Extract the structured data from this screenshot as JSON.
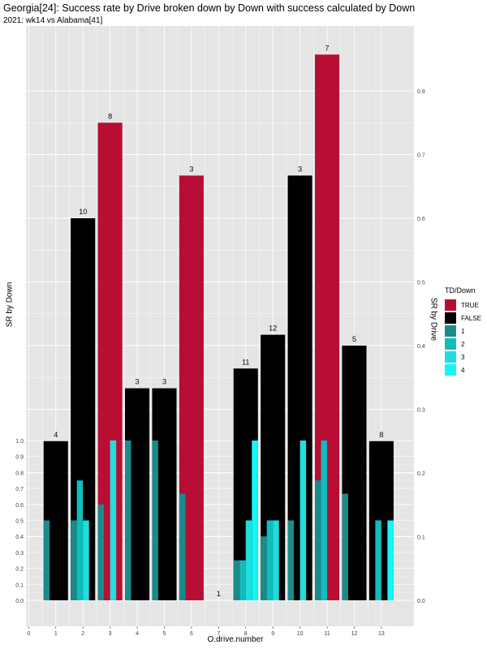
{
  "title": "Georgia[24]: Success rate by Drive broken down by Down with success calculated by Down",
  "subtitle": "2021: wk14 vs Alabama[41]",
  "colors": {
    "panel": "#e5e5e5",
    "grid": "#ffffff",
    "true": "#b90e33",
    "false": "#000000",
    "down1": "#1b8a8a",
    "down2": "#12bcbc",
    "down3": "#20dede",
    "down4": "#16f5f5"
  },
  "legend": {
    "title": "TD/Down",
    "items": [
      {
        "label": "TRUE",
        "color_key": "true"
      },
      {
        "label": "FALSE",
        "color_key": "false"
      },
      {
        "label": "1",
        "color_key": "down1"
      },
      {
        "label": "2",
        "color_key": "down2"
      },
      {
        "label": "3",
        "color_key": "down3"
      },
      {
        "label": "4",
        "color_key": "down4"
      }
    ]
  },
  "chart_data": {
    "type": "bar",
    "title": "Georgia[24]: Success rate by Drive broken down by Down with success calculated by Down",
    "subtitle": "2021: wk14 vs Alabama[41]",
    "xlabel": "O.drive.number",
    "ylabel_left": "SR by Down",
    "ylabel_right": "SR by Drive",
    "x_ticks": [
      "0",
      "1",
      "2",
      "3",
      "4",
      "5",
      "6",
      "7",
      "8",
      "9",
      "10",
      "11",
      "12",
      "13"
    ],
    "x_range": [
      -0.1,
      14.2
    ],
    "left_axis": {
      "range": [
        0,
        1
      ],
      "ticks": [
        "0.0",
        "0.1",
        "0.2",
        "0.3",
        "0.4",
        "0.5",
        "0.6",
        "0.7",
        "0.8",
        "0.9",
        "1.0"
      ]
    },
    "right_axis": {
      "range": [
        0,
        0.8
      ],
      "ticks": [
        "0.0",
        "0.1",
        "0.2",
        "0.3",
        "0.4",
        "0.5",
        "0.6",
        "0.7",
        "0.8"
      ]
    },
    "grid": true,
    "legend_position": "right",
    "drives": [
      {
        "drive": 1,
        "sr": 0.25,
        "td": false,
        "plays": "4"
      },
      {
        "drive": 2,
        "sr": 0.6,
        "td": false,
        "plays": "10"
      },
      {
        "drive": 3,
        "sr": 0.75,
        "td": true,
        "plays": "8"
      },
      {
        "drive": 4,
        "sr": 0.333,
        "td": false,
        "plays": "3"
      },
      {
        "drive": 5,
        "sr": 0.333,
        "td": false,
        "plays": "3"
      },
      {
        "drive": 6,
        "sr": 0.667,
        "td": true,
        "plays": "3"
      },
      {
        "drive": 7,
        "sr": 0.0,
        "td": false,
        "plays": "1"
      },
      {
        "drive": 8,
        "sr": 0.364,
        "td": false,
        "plays": "11"
      },
      {
        "drive": 9,
        "sr": 0.417,
        "td": false,
        "plays": "12"
      },
      {
        "drive": 10,
        "sr": 0.667,
        "td": false,
        "plays": "3"
      },
      {
        "drive": 11,
        "sr": 0.857,
        "td": true,
        "plays": "7"
      },
      {
        "drive": 12,
        "sr": 0.4,
        "td": false,
        "plays": "5"
      },
      {
        "drive": 13,
        "sr": 0.25,
        "td": false,
        "plays": "8"
      }
    ],
    "down_bars": [
      {
        "drive": 1,
        "down": 1,
        "sr": 0.5
      },
      {
        "drive": 2,
        "down": 1,
        "sr": 0.5
      },
      {
        "drive": 2,
        "down": 2,
        "sr": 0.75
      },
      {
        "drive": 2,
        "down": 3,
        "sr": 0.5
      },
      {
        "drive": 3,
        "down": 1,
        "sr": 0.6
      },
      {
        "drive": 3,
        "down": 3,
        "sr": 1.0
      },
      {
        "drive": 4,
        "down": 1,
        "sr": 1.0
      },
      {
        "drive": 5,
        "down": 1,
        "sr": 1.0
      },
      {
        "drive": 6,
        "down": 1,
        "sr": 0.667
      },
      {
        "drive": 8,
        "down": 1,
        "sr": 0.25
      },
      {
        "drive": 8,
        "down": 2,
        "sr": 0.25
      },
      {
        "drive": 8,
        "down": 3,
        "sr": 0.5
      },
      {
        "drive": 8,
        "down": 4,
        "sr": 1.0
      },
      {
        "drive": 9,
        "down": 1,
        "sr": 0.4
      },
      {
        "drive": 9,
        "down": 2,
        "sr": 0.5
      },
      {
        "drive": 9,
        "down": 3,
        "sr": 0.5
      },
      {
        "drive": 10,
        "down": 1,
        "sr": 0.5
      },
      {
        "drive": 10,
        "down": 3,
        "sr": 1.0
      },
      {
        "drive": 11,
        "down": 1,
        "sr": 0.75
      },
      {
        "drive": 11,
        "down": 2,
        "sr": 1.0
      },
      {
        "drive": 12,
        "down": 1,
        "sr": 0.667
      },
      {
        "drive": 13,
        "down": 2,
        "sr": 0.5
      },
      {
        "drive": 13,
        "down": 4,
        "sr": 0.5
      }
    ]
  }
}
